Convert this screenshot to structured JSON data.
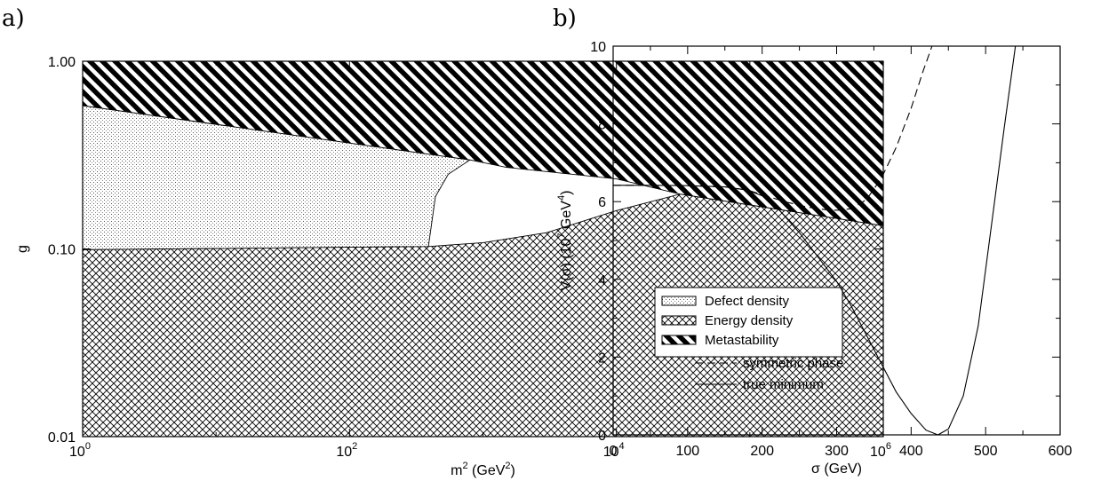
{
  "panels": {
    "a": "a)",
    "b": "b)"
  },
  "chart_data": [
    {
      "type": "area",
      "xlabel": "m",
      "xlabel_sup": "2",
      "xlabel_units": "(GeV",
      "xlabel_units_sup": "2",
      "xlabel_units_close": ")",
      "ylabel": "g",
      "x_scale": "log",
      "y_scale": "log",
      "xlim": [
        1,
        1000000
      ],
      "ylim": [
        0.01,
        1.0
      ],
      "x_ticks": [
        {
          "base": "10",
          "exp": "0",
          "value": 1
        },
        {
          "base": "10",
          "exp": "2",
          "value": 100
        },
        {
          "base": "10",
          "exp": "4",
          "value": 10000
        },
        {
          "base": "10",
          "exp": "6",
          "value": 1000000
        }
      ],
      "y_ticks": [
        {
          "label": "1.00",
          "value": 1.0
        },
        {
          "label": "0.10",
          "value": 0.1
        },
        {
          "label": "0.01",
          "value": 0.01
        }
      ],
      "legend_position": "center-right",
      "regions": [
        {
          "name": "Defect density",
          "pattern": "dots",
          "boundary": [
            [
              1,
              0.1
            ],
            [
              1,
              0.58
            ],
            [
              800,
              0.298
            ],
            [
              550,
              0.25
            ],
            [
              440,
              0.19
            ],
            [
              390,
              0.103
            ],
            [
              1,
              0.099
            ]
          ]
        },
        {
          "name": "Energy density",
          "pattern": "crosshatch",
          "boundary": [
            [
              1,
              0.01
            ],
            [
              1000000,
              0.01
            ],
            [
              1000000,
              0.133
            ],
            [
              30000,
              0.196
            ],
            [
              10000,
              0.16
            ],
            [
              3000,
              0.122
            ],
            [
              1000,
              0.108
            ],
            [
              390,
              0.103
            ],
            [
              1,
              0.099
            ]
          ]
        },
        {
          "name": "Metastability",
          "pattern": "diagonal",
          "boundary": [
            [
              1,
              1.0
            ],
            [
              1000000,
              1.0
            ],
            [
              1000000,
              0.133
            ],
            [
              30000,
              0.196
            ],
            [
              10000,
              0.236
            ],
            [
              1500,
              0.272
            ],
            [
              800,
              0.298
            ],
            [
              1,
              0.58
            ]
          ]
        }
      ],
      "legend": [
        "Defect density",
        "Energy density",
        "Metastability"
      ]
    },
    {
      "type": "line",
      "xlabel": "σ (GeV)",
      "ylabel": "V(σ) (10",
      "ylabel_sup1": "7",
      "ylabel_mid": " GeV",
      "ylabel_sup2": "4",
      "ylabel_close": ")",
      "xlim": [
        0,
        600
      ],
      "ylim": [
        0,
        10
      ],
      "x_ticks": [
        "0",
        "100",
        "200",
        "300",
        "400",
        "500",
        "600"
      ],
      "y_ticks": [
        "0",
        "2",
        "4",
        "6",
        "8",
        "10"
      ],
      "legend_position": "bottom-left",
      "series": [
        {
          "name": "symmetric phase",
          "style": "dashed",
          "x": [
            0,
            50,
            100,
            150,
            180,
            200,
            230,
            260,
            290,
            305,
            320,
            340,
            360,
            380,
            400,
            415,
            428
          ],
          "y": [
            6.42,
            6.42,
            6.41,
            6.38,
            6.3,
            6.18,
            6.0,
            5.86,
            5.78,
            5.78,
            5.82,
            6.05,
            6.6,
            7.4,
            8.4,
            9.3,
            10.0
          ]
        },
        {
          "name": "true minimum",
          "style": "solid",
          "x": [
            0,
            50,
            100,
            150,
            180,
            200,
            220,
            250,
            280,
            300,
            320,
            350,
            380,
            400,
            420,
            436,
            450,
            470,
            490,
            510,
            525,
            540
          ],
          "y": [
            6.42,
            6.42,
            6.41,
            6.38,
            6.3,
            6.15,
            5.85,
            5.2,
            4.45,
            3.95,
            3.3,
            2.2,
            1.1,
            0.55,
            0.12,
            0.0,
            0.15,
            1.0,
            2.8,
            5.7,
            7.9,
            10.0
          ]
        }
      ]
    }
  ]
}
